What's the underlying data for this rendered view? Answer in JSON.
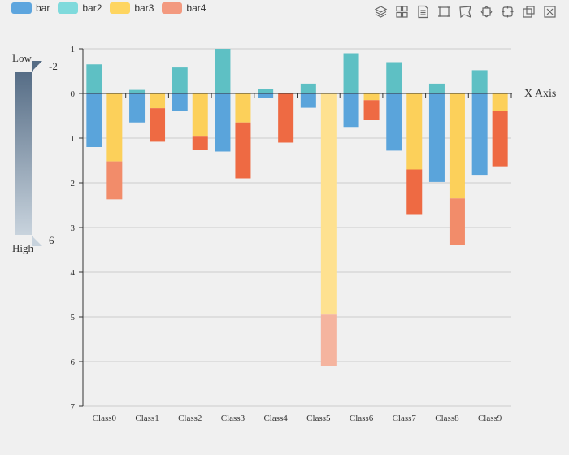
{
  "legend": [
    {
      "name": "bar",
      "color": "#5da5de"
    },
    {
      "name": "bar2",
      "color": "#7fdadc"
    },
    {
      "name": "bar3",
      "color": "#fed560"
    },
    {
      "name": "bar4",
      "color": "#f3997f"
    }
  ],
  "toolbox": [
    "stack-icon",
    "tiled-icon",
    "data-view-icon",
    "rect-select-icon",
    "lasso-select-icon",
    "keep-select-icon",
    "clear-select-icon",
    "zoom-icon",
    "zoom-reset-icon"
  ],
  "visual_map": {
    "low_label": "Low",
    "high_label": "High",
    "min_value": "-2",
    "max_value": "6"
  },
  "chart_data": {
    "type": "bar",
    "stacked": true,
    "y_inverse": true,
    "categories": [
      "Class0",
      "Class1",
      "Class2",
      "Class3",
      "Class4",
      "Class5",
      "Class6",
      "Class7",
      "Class8",
      "Class9"
    ],
    "xlabel": "X Axis",
    "ylim": [
      -1,
      7
    ],
    "yticks": [
      "-1",
      "0",
      "1",
      "2",
      "3",
      "4",
      "5",
      "6",
      "7"
    ],
    "grid": true,
    "series": [
      {
        "name": "bar",
        "stack": "one",
        "values": [
          1.2,
          0.65,
          0.4,
          1.3,
          0.1,
          0.32,
          0.75,
          1.28,
          1.98,
          1.82
        ]
      },
      {
        "name": "bar2",
        "stack": "one",
        "values": [
          -0.65,
          -0.08,
          -0.58,
          -1.0,
          -0.1,
          -0.22,
          -0.9,
          -0.7,
          -0.22,
          -0.52
        ]
      },
      {
        "name": "bar3",
        "stack": "two",
        "values": [
          1.52,
          0.33,
          0.95,
          0.65,
          0.0,
          4.95,
          0.15,
          1.7,
          2.35,
          0.4
        ]
      },
      {
        "name": "bar4",
        "stack": "two",
        "values": [
          0.85,
          0.75,
          0.32,
          1.25,
          1.1,
          1.15,
          0.45,
          1.0,
          1.05,
          1.23
        ]
      }
    ]
  }
}
